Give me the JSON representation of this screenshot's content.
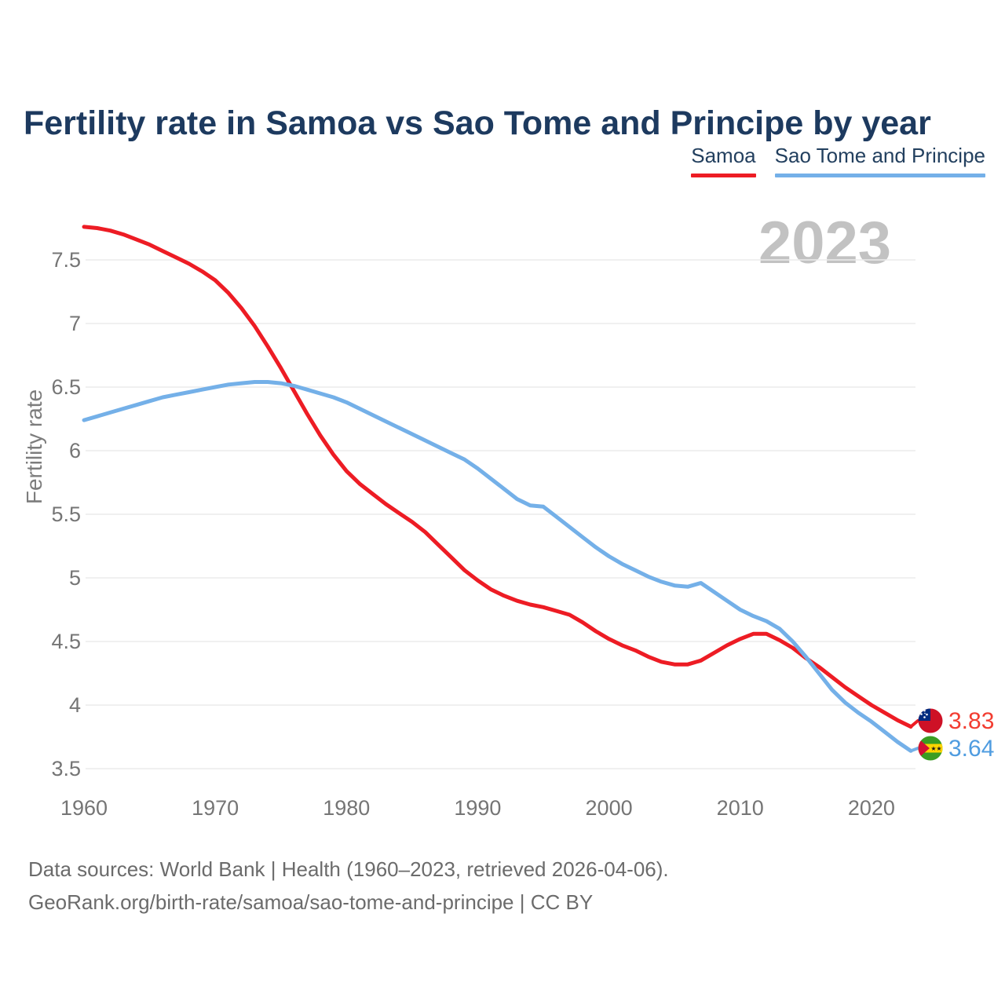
{
  "header": {
    "title": "Fertility rate in Samoa vs Sao Tome and Principe by year"
  },
  "legend": [
    {
      "label": "Samoa",
      "color": "#ed1c24"
    },
    {
      "label": "Sao Tome and Principe",
      "color": "#74b0e8"
    }
  ],
  "watermark": "2023",
  "footer": {
    "line1": "Data sources: World Bank | Health (1960–2023, retrieved 2026-04-06).",
    "line2": "GeoRank.org/birth-rate/samoa/sao-tome-and-principe | CC BY"
  },
  "chart_data": {
    "type": "line",
    "title": "Fertility rate in Samoa vs Sao Tome and Principe by year",
    "xlabel": "",
    "ylabel": "Fertility rate",
    "x_ticks": [
      1960,
      1970,
      1980,
      1990,
      2000,
      2010,
      2020
    ],
    "y_ticks": [
      7.5,
      7,
      6.5,
      6,
      5.5,
      5,
      4.5,
      4,
      3.5
    ],
    "ylim": [
      3.5,
      7.9
    ],
    "grid": "horizontal",
    "legend_position": "top-right",
    "x": [
      1960,
      1961,
      1962,
      1963,
      1964,
      1965,
      1966,
      1967,
      1968,
      1969,
      1970,
      1971,
      1972,
      1973,
      1974,
      1975,
      1976,
      1977,
      1978,
      1979,
      1980,
      1981,
      1982,
      1983,
      1984,
      1985,
      1986,
      1987,
      1988,
      1989,
      1990,
      1991,
      1992,
      1993,
      1994,
      1995,
      1996,
      1997,
      1998,
      1999,
      2000,
      2001,
      2002,
      2003,
      2004,
      2005,
      2006,
      2007,
      2008,
      2009,
      2010,
      2011,
      2012,
      2013,
      2014,
      2015,
      2016,
      2017,
      2018,
      2019,
      2020,
      2021,
      2022,
      2023
    ],
    "series": [
      {
        "name": "Samoa",
        "color": "#ed1c24",
        "label_color": "#f23d31",
        "end_label": "3.83",
        "values": [
          7.76,
          7.75,
          7.73,
          7.7,
          7.66,
          7.62,
          7.57,
          7.52,
          7.47,
          7.41,
          7.34,
          7.24,
          7.12,
          6.98,
          6.82,
          6.65,
          6.47,
          6.29,
          6.12,
          5.97,
          5.84,
          5.74,
          5.66,
          5.58,
          5.51,
          5.44,
          5.36,
          5.26,
          5.16,
          5.06,
          4.98,
          4.91,
          4.86,
          4.82,
          4.79,
          4.77,
          4.74,
          4.71,
          4.65,
          4.58,
          4.52,
          4.47,
          4.43,
          4.38,
          4.34,
          4.32,
          4.32,
          4.35,
          4.41,
          4.47,
          4.52,
          4.56,
          4.56,
          4.51,
          4.45,
          4.37,
          4.3,
          4.22,
          4.14,
          4.07,
          4.0,
          3.94,
          3.88,
          3.83
        ]
      },
      {
        "name": "Sao Tome and Principe",
        "color": "#74b0e8",
        "label_color": "#4f9ce0",
        "end_label": "3.64",
        "values": [
          6.24,
          6.27,
          6.3,
          6.33,
          6.36,
          6.39,
          6.42,
          6.44,
          6.46,
          6.48,
          6.5,
          6.52,
          6.53,
          6.54,
          6.54,
          6.53,
          6.51,
          6.48,
          6.45,
          6.42,
          6.38,
          6.33,
          6.28,
          6.23,
          6.18,
          6.13,
          6.08,
          6.03,
          5.98,
          5.93,
          5.86,
          5.78,
          5.7,
          5.62,
          5.57,
          5.56,
          5.48,
          5.4,
          5.32,
          5.24,
          5.17,
          5.11,
          5.06,
          5.01,
          4.97,
          4.94,
          4.93,
          4.96,
          4.89,
          4.82,
          4.75,
          4.7,
          4.66,
          4.6,
          4.5,
          4.38,
          4.25,
          4.12,
          4.02,
          3.94,
          3.87,
          3.79,
          3.71,
          3.64
        ]
      }
    ]
  }
}
